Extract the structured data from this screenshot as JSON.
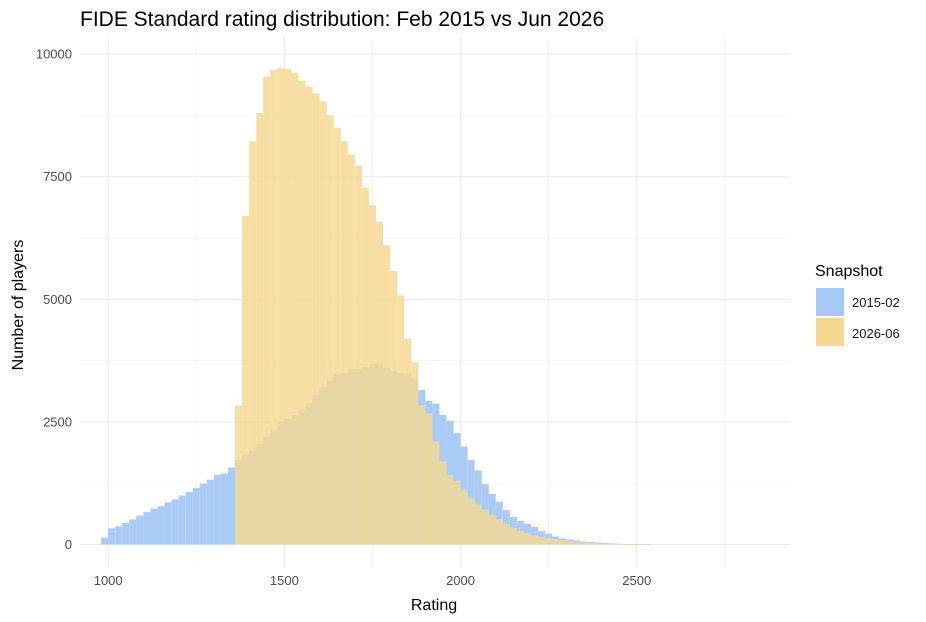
{
  "chart_data": {
    "type": "histogram",
    "title": "FIDE Standard rating distribution: Feb 2015 vs Jun 2026",
    "xlabel": "Rating",
    "ylabel": "Number of players",
    "xlim": [
      920,
      2935
    ],
    "ylim": [
      -480,
      10350
    ],
    "x_ticks": [
      1000,
      1500,
      2000,
      2500
    ],
    "y_ticks": [
      0,
      2500,
      5000,
      7500,
      10000
    ],
    "y_tick_labels": [
      "0",
      "2500",
      "5000",
      "7500",
      "10000"
    ],
    "x_tick_labels": [
      "1000",
      "1500",
      "2000",
      "2500"
    ],
    "bin_width": 20,
    "bin_start": 980,
    "grid": true,
    "legend": {
      "title": "Snapshot",
      "position": "right"
    },
    "series": [
      {
        "name": "2015-02",
        "color": "#a5c8f5",
        "values": [
          140,
          330,
          370,
          440,
          510,
          590,
          660,
          730,
          780,
          860,
          920,
          1000,
          1070,
          1150,
          1240,
          1320,
          1420,
          1450,
          1570,
          1720,
          1830,
          1920,
          2050,
          2200,
          2340,
          2500,
          2560,
          2640,
          2750,
          2880,
          3050,
          3200,
          3340,
          3470,
          3490,
          3570,
          3580,
          3620,
          3680,
          3670,
          3600,
          3540,
          3500,
          3480,
          3400,
          3150,
          2930,
          2870,
          2640,
          2520,
          2270,
          2000,
          1720,
          1510,
          1230,
          1030,
          870,
          700,
          560,
          480,
          420,
          360,
          270,
          220,
          160,
          120,
          100,
          80,
          60,
          50,
          40,
          30,
          20,
          15,
          10,
          8,
          5,
          3
        ]
      },
      {
        "name": "2026-06",
        "color": "#f5d890",
        "values": [
          0,
          0,
          0,
          0,
          0,
          0,
          0,
          0,
          0,
          0,
          0,
          0,
          0,
          0,
          0,
          0,
          0,
          0,
          0,
          2830,
          6700,
          8220,
          8800,
          9540,
          9680,
          9720,
          9700,
          9620,
          9460,
          9340,
          9200,
          9040,
          8750,
          8500,
          8220,
          7950,
          7720,
          7280,
          6920,
          6580,
          6100,
          5580,
          5080,
          4200,
          3720,
          2840,
          2680,
          2100,
          1700,
          1420,
          1300,
          1120,
          950,
          820,
          710,
          600,
          520,
          420,
          340,
          280,
          230,
          190,
          160,
          130,
          110,
          90,
          70,
          55,
          45,
          35,
          25,
          18,
          12,
          8,
          6,
          4,
          3,
          2
        ]
      }
    ]
  }
}
